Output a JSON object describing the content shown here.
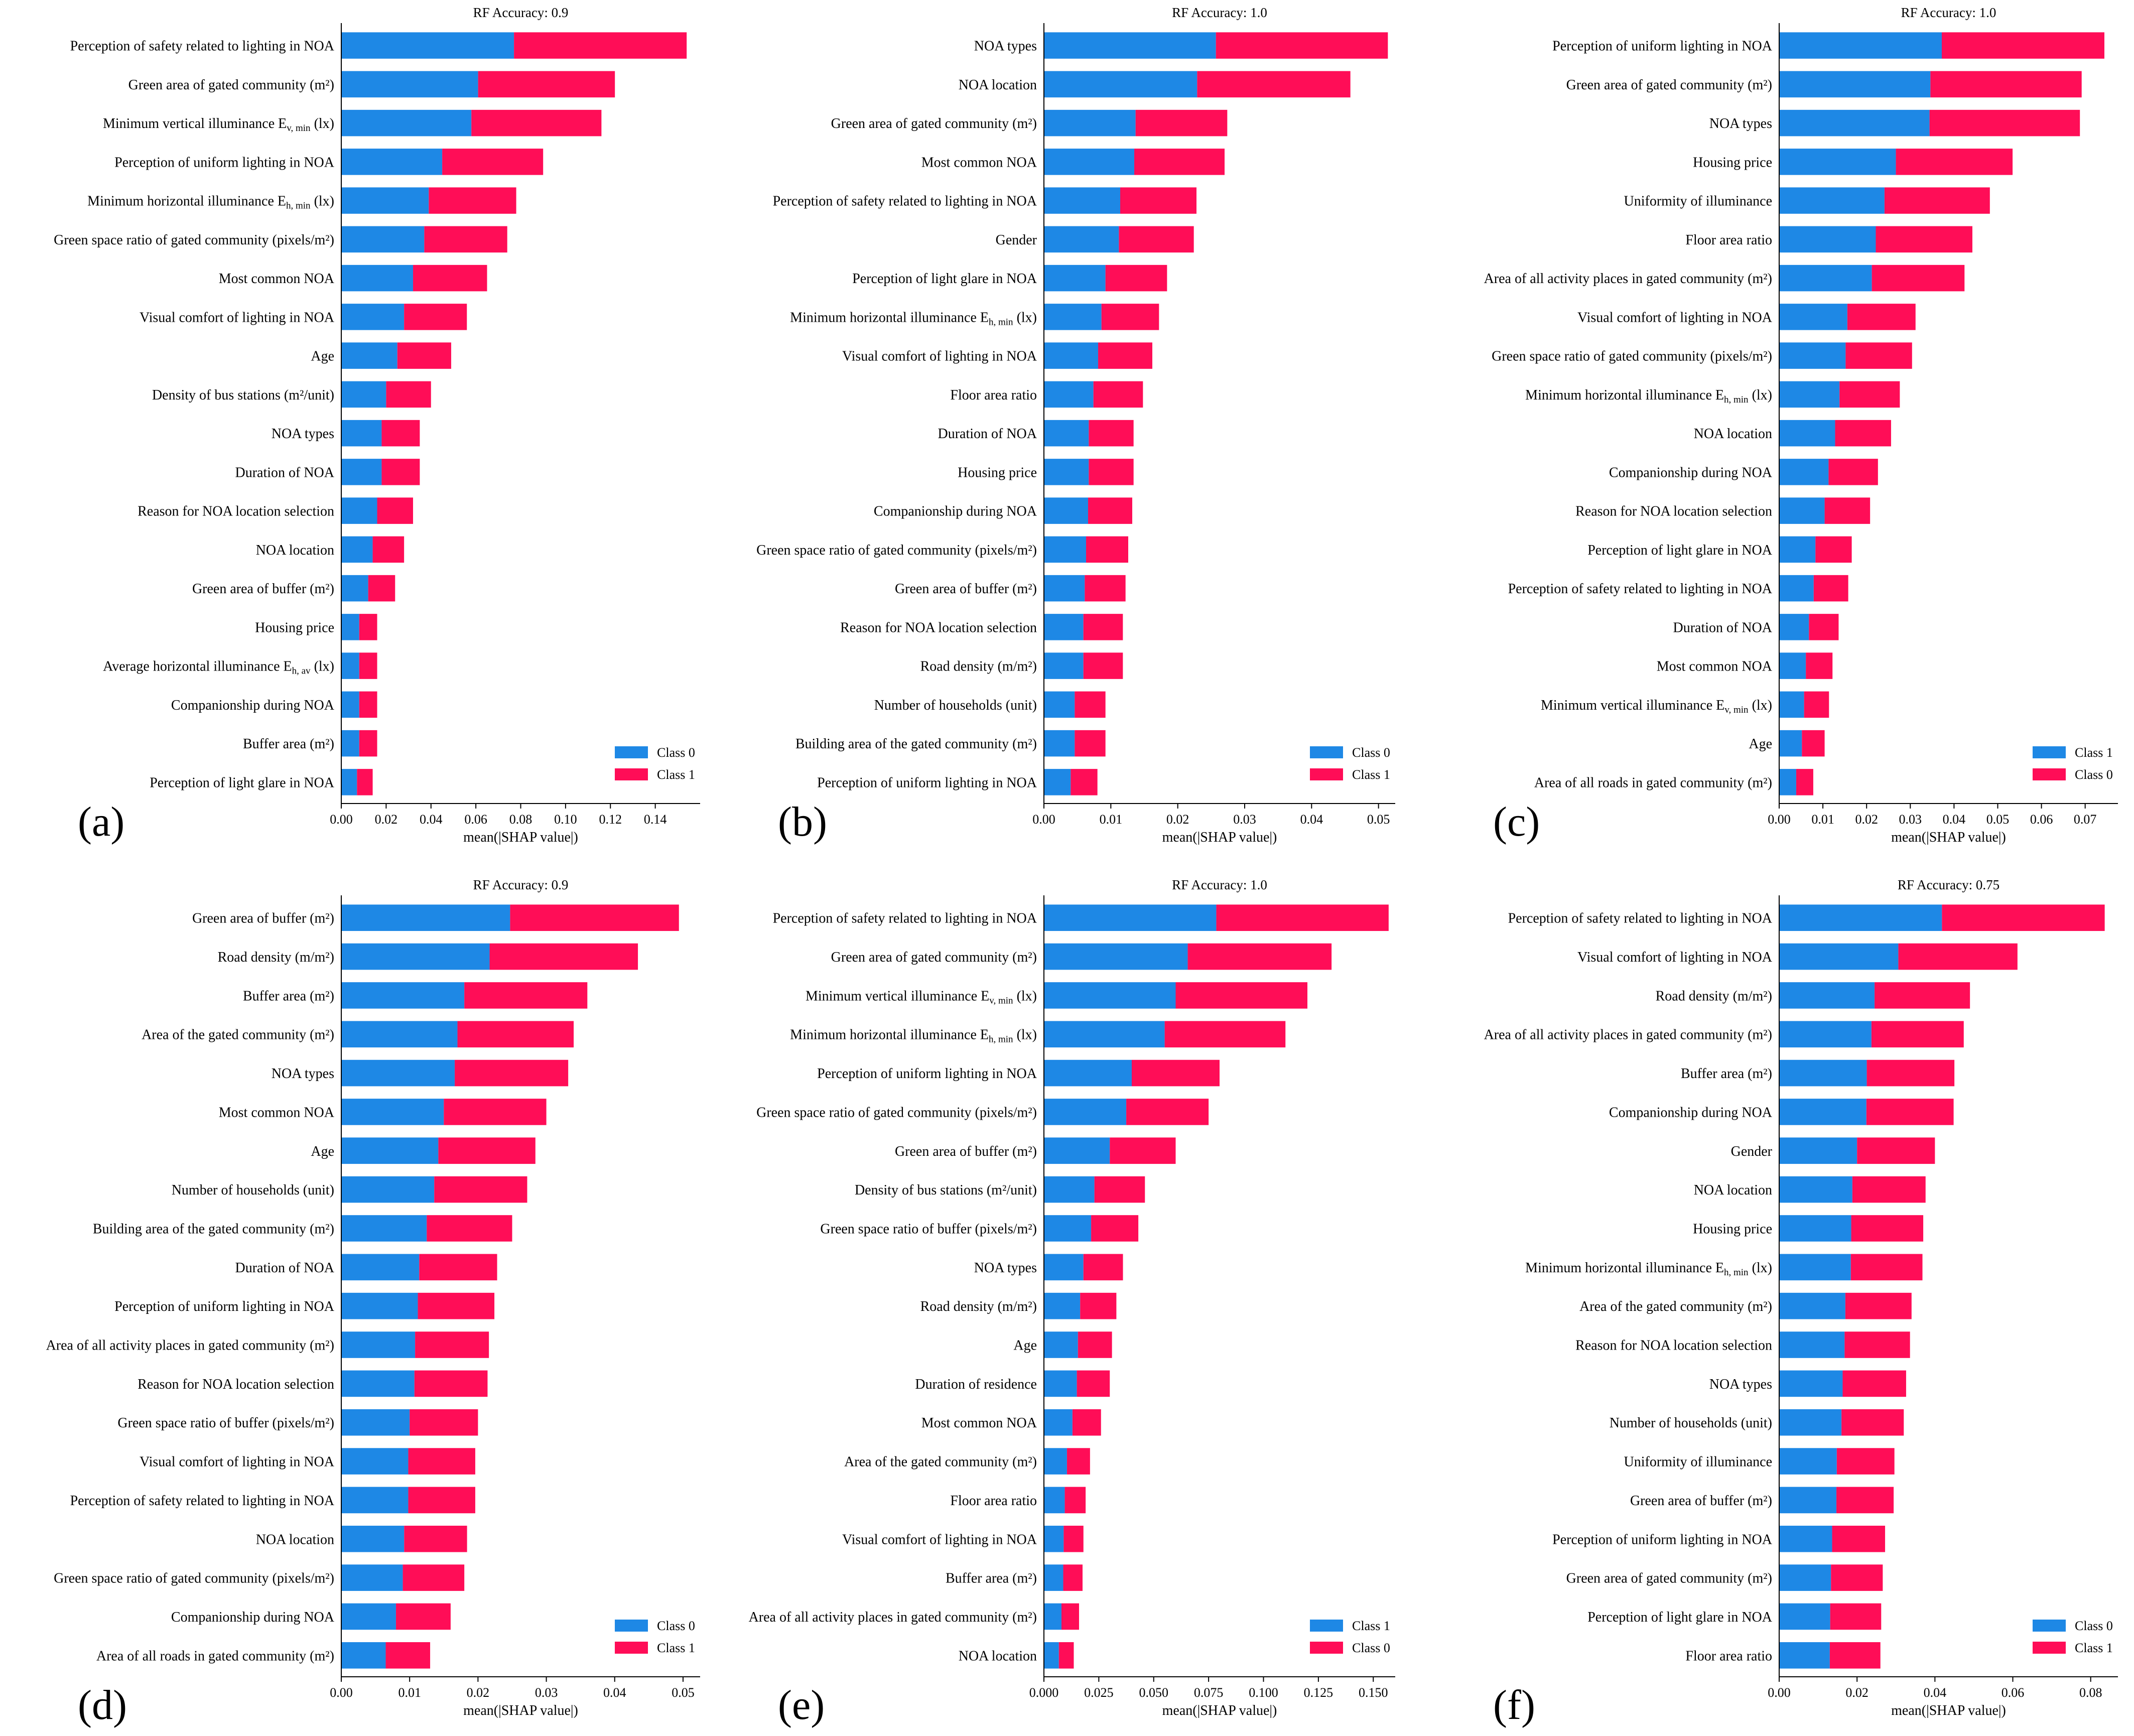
{
  "chart_data": [
    {
      "type": "bar",
      "panel": "(a)",
      "title": "RF Accuracy: 0.9",
      "xlabel": "mean(|SHAP value|)",
      "xlim": [
        0,
        0.16
      ],
      "xticks": [
        0.0,
        0.02,
        0.04,
        0.06,
        0.08,
        0.1,
        0.12,
        0.14
      ],
      "xtick_labels": [
        "0.00",
        "0.02",
        "0.04",
        "0.06",
        "0.08",
        "0.10",
        "0.12",
        "0.14"
      ],
      "legend": [
        "Class 0",
        "Class 1"
      ],
      "categories": [
        "Perception of safety related to lighting in NOA",
        "Green area of gated community (m²)",
        "Minimum vertical illuminance E_v, min (lx)",
        "Perception of uniform lighting in NOA",
        "Minimum horizontal illuminance E_h, min (lx)",
        "Green space ratio of gated community (pixels/m²)",
        "Most common  NOA",
        "Visual comfort of lighting in NOA",
        "Age",
        "Density of bus stations (m²/unit)",
        "NOA types",
        "Duration of NOA",
        "Reason for NOA location selection",
        "NOA location",
        "Green area of buffer (m²)",
        "Housing price",
        "Average horizontal illuminance E_h, av (lx)",
        "Companionship during NOA",
        "Buffer area (m²)",
        "Perception of light glare in NOA"
      ],
      "series": [
        {
          "name": "Class 0",
          "color": "#1e88e5",
          "values": [
            0.077,
            0.061,
            0.058,
            0.045,
            0.039,
            0.037,
            0.032,
            0.028,
            0.025,
            0.02,
            0.018,
            0.018,
            0.016,
            0.014,
            0.012,
            0.008,
            0.008,
            0.008,
            0.008,
            0.007
          ]
        },
        {
          "name": "Class 1",
          "color": "#ff0d57",
          "values": [
            0.077,
            0.061,
            0.058,
            0.045,
            0.039,
            0.037,
            0.033,
            0.028,
            0.024,
            0.02,
            0.017,
            0.017,
            0.016,
            0.014,
            0.012,
            0.008,
            0.008,
            0.008,
            0.008,
            0.007
          ]
        }
      ]
    },
    {
      "type": "bar",
      "panel": "(b)",
      "title": "RF Accuracy: 1.0",
      "xlabel": "mean(|SHAP value|)",
      "xlim": [
        0,
        0.0525
      ],
      "xticks": [
        0.0,
        0.01,
        0.02,
        0.03,
        0.04,
        0.05
      ],
      "xtick_labels": [
        "0.00",
        "0.01",
        "0.02",
        "0.03",
        "0.04",
        "0.05"
      ],
      "legend": [
        "Class 0",
        "Class 1"
      ],
      "categories": [
        "NOA types",
        "NOA location",
        "Green area of gated community (m²)",
        "Most common  NOA",
        "Perception of safety related to lighting in NOA",
        "Gender",
        "Perception of light glare in NOA",
        "Minimum horizontal illuminance E_h, min (lx)",
        "Visual comfort of lighting in NOA",
        "Floor area ratio",
        "Duration of NOA",
        "Housing price",
        "Companionship during NOA",
        "Green space ratio of gated community (pixels/m²)",
        "Green area of buffer (m²)",
        "Reason for NOA location selection",
        "Road density (m/m²)",
        "Number of households (unit)",
        "Building area of the gated community (m²)",
        "Perception of uniform lighting in NOA"
      ],
      "series": [
        {
          "name": "Class 0",
          "color": "#1e88e5",
          "values": [
            0.0257,
            0.0229,
            0.0137,
            0.0135,
            0.0114,
            0.0112,
            0.0092,
            0.0086,
            0.0081,
            0.0074,
            0.0067,
            0.0067,
            0.0066,
            0.0063,
            0.0061,
            0.0059,
            0.0059,
            0.0046,
            0.0046,
            0.004
          ]
        },
        {
          "name": "Class 1",
          "color": "#ff0d57",
          "values": [
            0.0257,
            0.0229,
            0.0137,
            0.0135,
            0.0114,
            0.0112,
            0.0092,
            0.0086,
            0.0081,
            0.0074,
            0.0067,
            0.0067,
            0.0066,
            0.0063,
            0.0061,
            0.0059,
            0.0059,
            0.0046,
            0.0046,
            0.004
          ]
        }
      ]
    },
    {
      "type": "bar",
      "panel": "(c)",
      "title": "RF Accuracy: 1.0",
      "xlabel": "mean(|SHAP value|)",
      "xlim": [
        0,
        0.0775
      ],
      "xticks": [
        0.0,
        0.01,
        0.02,
        0.03,
        0.04,
        0.05,
        0.06,
        0.07
      ],
      "xtick_labels": [
        "0.00",
        "0.01",
        "0.02",
        "0.03",
        "0.04",
        "0.05",
        "0.06",
        "0.07"
      ],
      "legend": [
        "Class 1",
        "Class 0"
      ],
      "categories": [
        "Perception of uniform lighting in NOA",
        "Green area of gated community (m²)",
        "NOA types",
        "Housing price",
        "Uniformity of illuminance",
        "Floor area ratio",
        "Area of all activity places in gated community (m²)",
        "Visual comfort of lighting in NOA",
        "Green space ratio of gated community (pixels/m²)",
        "Minimum horizontal illuminance E_h, min (lx)",
        "NOA location",
        "Companionship during NOA",
        "Reason for NOA location selection",
        "Perception of light glare in NOA",
        "Perception of safety related to lighting in NOA",
        "Duration of NOA",
        "Most common  NOA",
        "Minimum vertical illuminance E_v, min (lx)",
        "Age",
        "Area of all roads in gated community (m²)"
      ],
      "series": [
        {
          "name": "Class 1",
          "color": "#1e88e5",
          "values": [
            0.0372,
            0.0346,
            0.0344,
            0.0267,
            0.0241,
            0.0221,
            0.0212,
            0.0156,
            0.0152,
            0.0138,
            0.0128,
            0.0113,
            0.0104,
            0.0083,
            0.0079,
            0.0068,
            0.0061,
            0.0057,
            0.0052,
            0.0039
          ]
        },
        {
          "name": "Class 0",
          "color": "#ff0d57",
          "values": [
            0.0372,
            0.0346,
            0.0344,
            0.0267,
            0.0241,
            0.0221,
            0.0212,
            0.0156,
            0.0152,
            0.0138,
            0.0128,
            0.0113,
            0.0104,
            0.0083,
            0.0079,
            0.0068,
            0.0061,
            0.0057,
            0.0052,
            0.0039
          ]
        }
      ]
    },
    {
      "type": "bar",
      "panel": "(d)",
      "title": "RF Accuracy: 0.9",
      "xlabel": "mean(|SHAP value|)",
      "xlim": [
        0,
        0.0525
      ],
      "xticks": [
        0.0,
        0.01,
        0.02,
        0.03,
        0.04,
        0.05
      ],
      "xtick_labels": [
        "0.00",
        "0.01",
        "0.02",
        "0.03",
        "0.04",
        "0.05"
      ],
      "legend": [
        "Class 0",
        "Class 1"
      ],
      "categories": [
        "Green area of buffer (m²)",
        "Road density (m/m²)",
        "Buffer area (m²)",
        "Area of  the gated community (m²)",
        "NOA types",
        "Most common  NOA",
        "Age",
        "Number of households (unit)",
        "Building area of the gated community (m²)",
        "Duration of NOA",
        "Perception of uniform lighting in NOA",
        "Area of all activity places in gated community (m²)",
        "Reason for NOA location selection",
        "Green space ratio of buffer (pixels/m²)",
        "Visual comfort of lighting in NOA",
        "Perception of safety related to lighting in NOA",
        "NOA location",
        "Green space ratio of gated community (pixels/m²)",
        "Companionship during NOA",
        "Area of all roads in gated community (m²)"
      ],
      "series": [
        {
          "name": "Class 0",
          "color": "#1e88e5",
          "values": [
            0.0247,
            0.0217,
            0.018,
            0.017,
            0.0166,
            0.015,
            0.0142,
            0.0136,
            0.0125,
            0.0114,
            0.0112,
            0.0108,
            0.0107,
            0.01,
            0.0098,
            0.0098,
            0.0092,
            0.009,
            0.008,
            0.0065
          ]
        },
        {
          "name": "Class 1",
          "color": "#ff0d57",
          "values": [
            0.0247,
            0.0217,
            0.018,
            0.017,
            0.0166,
            0.015,
            0.0142,
            0.0136,
            0.0125,
            0.0114,
            0.0112,
            0.0108,
            0.0107,
            0.01,
            0.0098,
            0.0098,
            0.0092,
            0.009,
            0.008,
            0.0065
          ]
        }
      ]
    },
    {
      "type": "bar",
      "panel": "(e)",
      "title": "RF Accuracy: 1.0",
      "xlabel": "mean(|SHAP value|)",
      "xlim": [
        0,
        0.16
      ],
      "xticks": [
        0.0,
        0.025,
        0.05,
        0.075,
        0.1,
        0.125,
        0.15
      ],
      "xtick_labels": [
        "0.000",
        "0.025",
        "0.050",
        "0.075",
        "0.100",
        "0.125",
        "0.150"
      ],
      "legend": [
        "Class 1",
        "Class 0"
      ],
      "categories": [
        "Perception of safety related to lighting in NOA",
        "Green area of gated community (m²)",
        "Minimum vertical illuminance E_v, min (lx)",
        "Minimum horizontal illuminance E_h, min (lx)",
        "Perception of uniform lighting in NOA",
        "Green space ratio of gated community (pixels/m²)",
        "Green area of buffer (m²)",
        "Density of bus stations (m²/unit)",
        "Green space ratio of buffer (pixels/m²)",
        "NOA types",
        "Road density (m/m²)",
        "Age",
        "Duration of residence",
        "Most common  NOA",
        "Area of  the gated community (m²)",
        "Floor area ratio",
        "Visual comfort of lighting in NOA",
        "Buffer area (m²)",
        "Area of all activity places in gated community (m²)",
        "NOA location"
      ],
      "series": [
        {
          "name": "Class 1",
          "color": "#1e88e5",
          "values": [
            0.0785,
            0.0655,
            0.06,
            0.055,
            0.04,
            0.0375,
            0.03,
            0.023,
            0.0215,
            0.018,
            0.0165,
            0.0155,
            0.015,
            0.013,
            0.0105,
            0.0095,
            0.009,
            0.0088,
            0.008,
            0.0068
          ]
        },
        {
          "name": "Class 0",
          "color": "#ff0d57",
          "values": [
            0.0785,
            0.0655,
            0.06,
            0.055,
            0.04,
            0.0375,
            0.03,
            0.023,
            0.0215,
            0.018,
            0.0165,
            0.0155,
            0.015,
            0.013,
            0.0105,
            0.0095,
            0.009,
            0.0088,
            0.008,
            0.0068
          ]
        }
      ]
    },
    {
      "type": "bar",
      "panel": "(f)",
      "title": "RF Accuracy: 0.75",
      "xlabel": "mean(|SHAP value|)",
      "xlim": [
        0,
        0.087
      ],
      "xticks": [
        0.0,
        0.02,
        0.04,
        0.06,
        0.08
      ],
      "xtick_labels": [
        "0.00",
        "0.02",
        "0.04",
        "0.06",
        "0.08"
      ],
      "legend": [
        "Class 0",
        "Class 1"
      ],
      "categories": [
        "Perception of safety related to lighting in NOA",
        "Visual comfort of lighting in NOA",
        "Road density (m/m²)",
        "Area of all activity places in gated community (m²)",
        "Buffer area (m²)",
        "Companionship during NOA",
        "Gender",
        "NOA location",
        "Housing price",
        "Minimum horizontal illuminance E_h, min (lx)",
        "Area of  the gated community (m²)",
        "Reason for NOA location selection",
        "NOA types",
        "Number of households (unit)",
        "Uniformity of illuminance",
        "Green area of buffer (m²)",
        "Perception of uniform lighting in NOA",
        "Green area of gated community (m²)",
        "Perception of light glare in NOA",
        "Floor area ratio"
      ],
      "series": [
        {
          "name": "Class 0",
          "color": "#1e88e5",
          "values": [
            0.0418,
            0.0306,
            0.0245,
            0.0237,
            0.0225,
            0.0224,
            0.02,
            0.0188,
            0.0185,
            0.0184,
            0.017,
            0.0168,
            0.0163,
            0.016,
            0.0148,
            0.0147,
            0.0136,
            0.0133,
            0.0131,
            0.013
          ]
        },
        {
          "name": "Class 1",
          "color": "#ff0d57",
          "values": [
            0.0418,
            0.0306,
            0.0245,
            0.0237,
            0.0225,
            0.0224,
            0.02,
            0.0188,
            0.0185,
            0.0184,
            0.017,
            0.0168,
            0.0163,
            0.016,
            0.0148,
            0.0147,
            0.0136,
            0.0133,
            0.0131,
            0.013
          ]
        }
      ]
    }
  ]
}
